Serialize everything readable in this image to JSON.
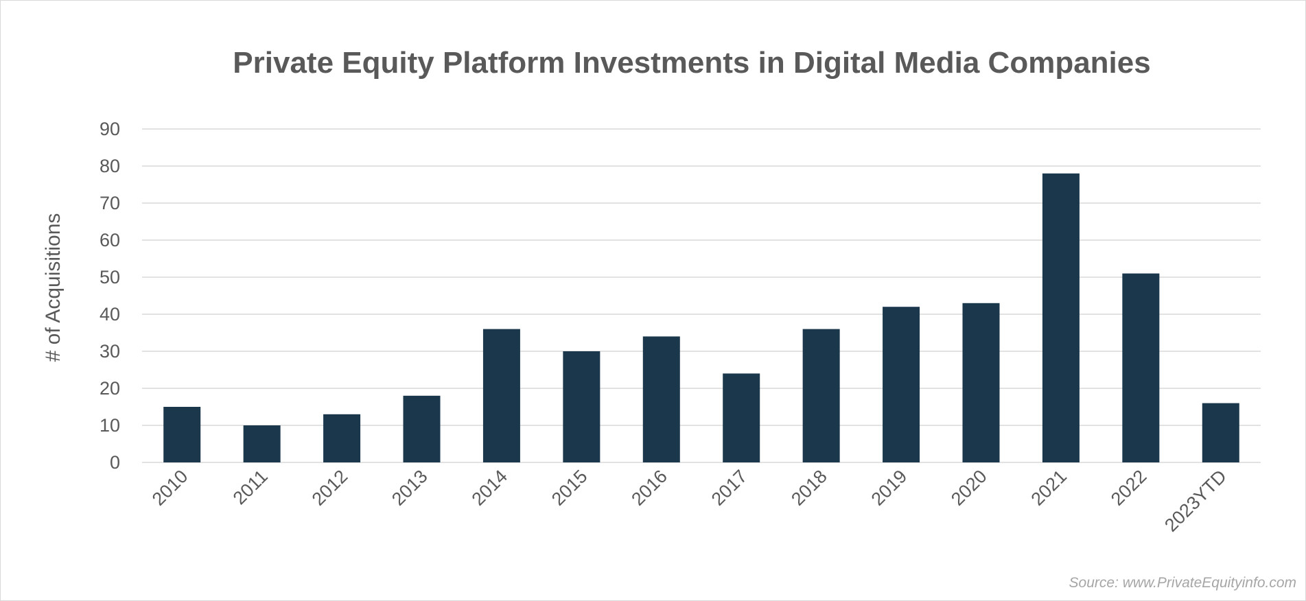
{
  "chart_data": {
    "type": "bar",
    "title": "Private Equity Platform Investments in Digital Media Companies",
    "xlabel": "",
    "ylabel": "# of Acquisitions",
    "categories": [
      "2010",
      "2011",
      "2012",
      "2013",
      "2014",
      "2015",
      "2016",
      "2017",
      "2018",
      "2019",
      "2020",
      "2021",
      "2022",
      "2023YTD"
    ],
    "values": [
      15,
      10,
      13,
      18,
      36,
      30,
      34,
      24,
      36,
      42,
      43,
      78,
      51,
      16
    ],
    "ylim": [
      0,
      90
    ],
    "yticks": [
      0,
      10,
      20,
      30,
      40,
      50,
      60,
      70,
      80,
      90
    ],
    "grid": true,
    "legend": "none",
    "bar_color": "#1b374c",
    "gridline_color": "#d9d9d9"
  },
  "source": "Source: www.PrivateEquityinfo.com"
}
